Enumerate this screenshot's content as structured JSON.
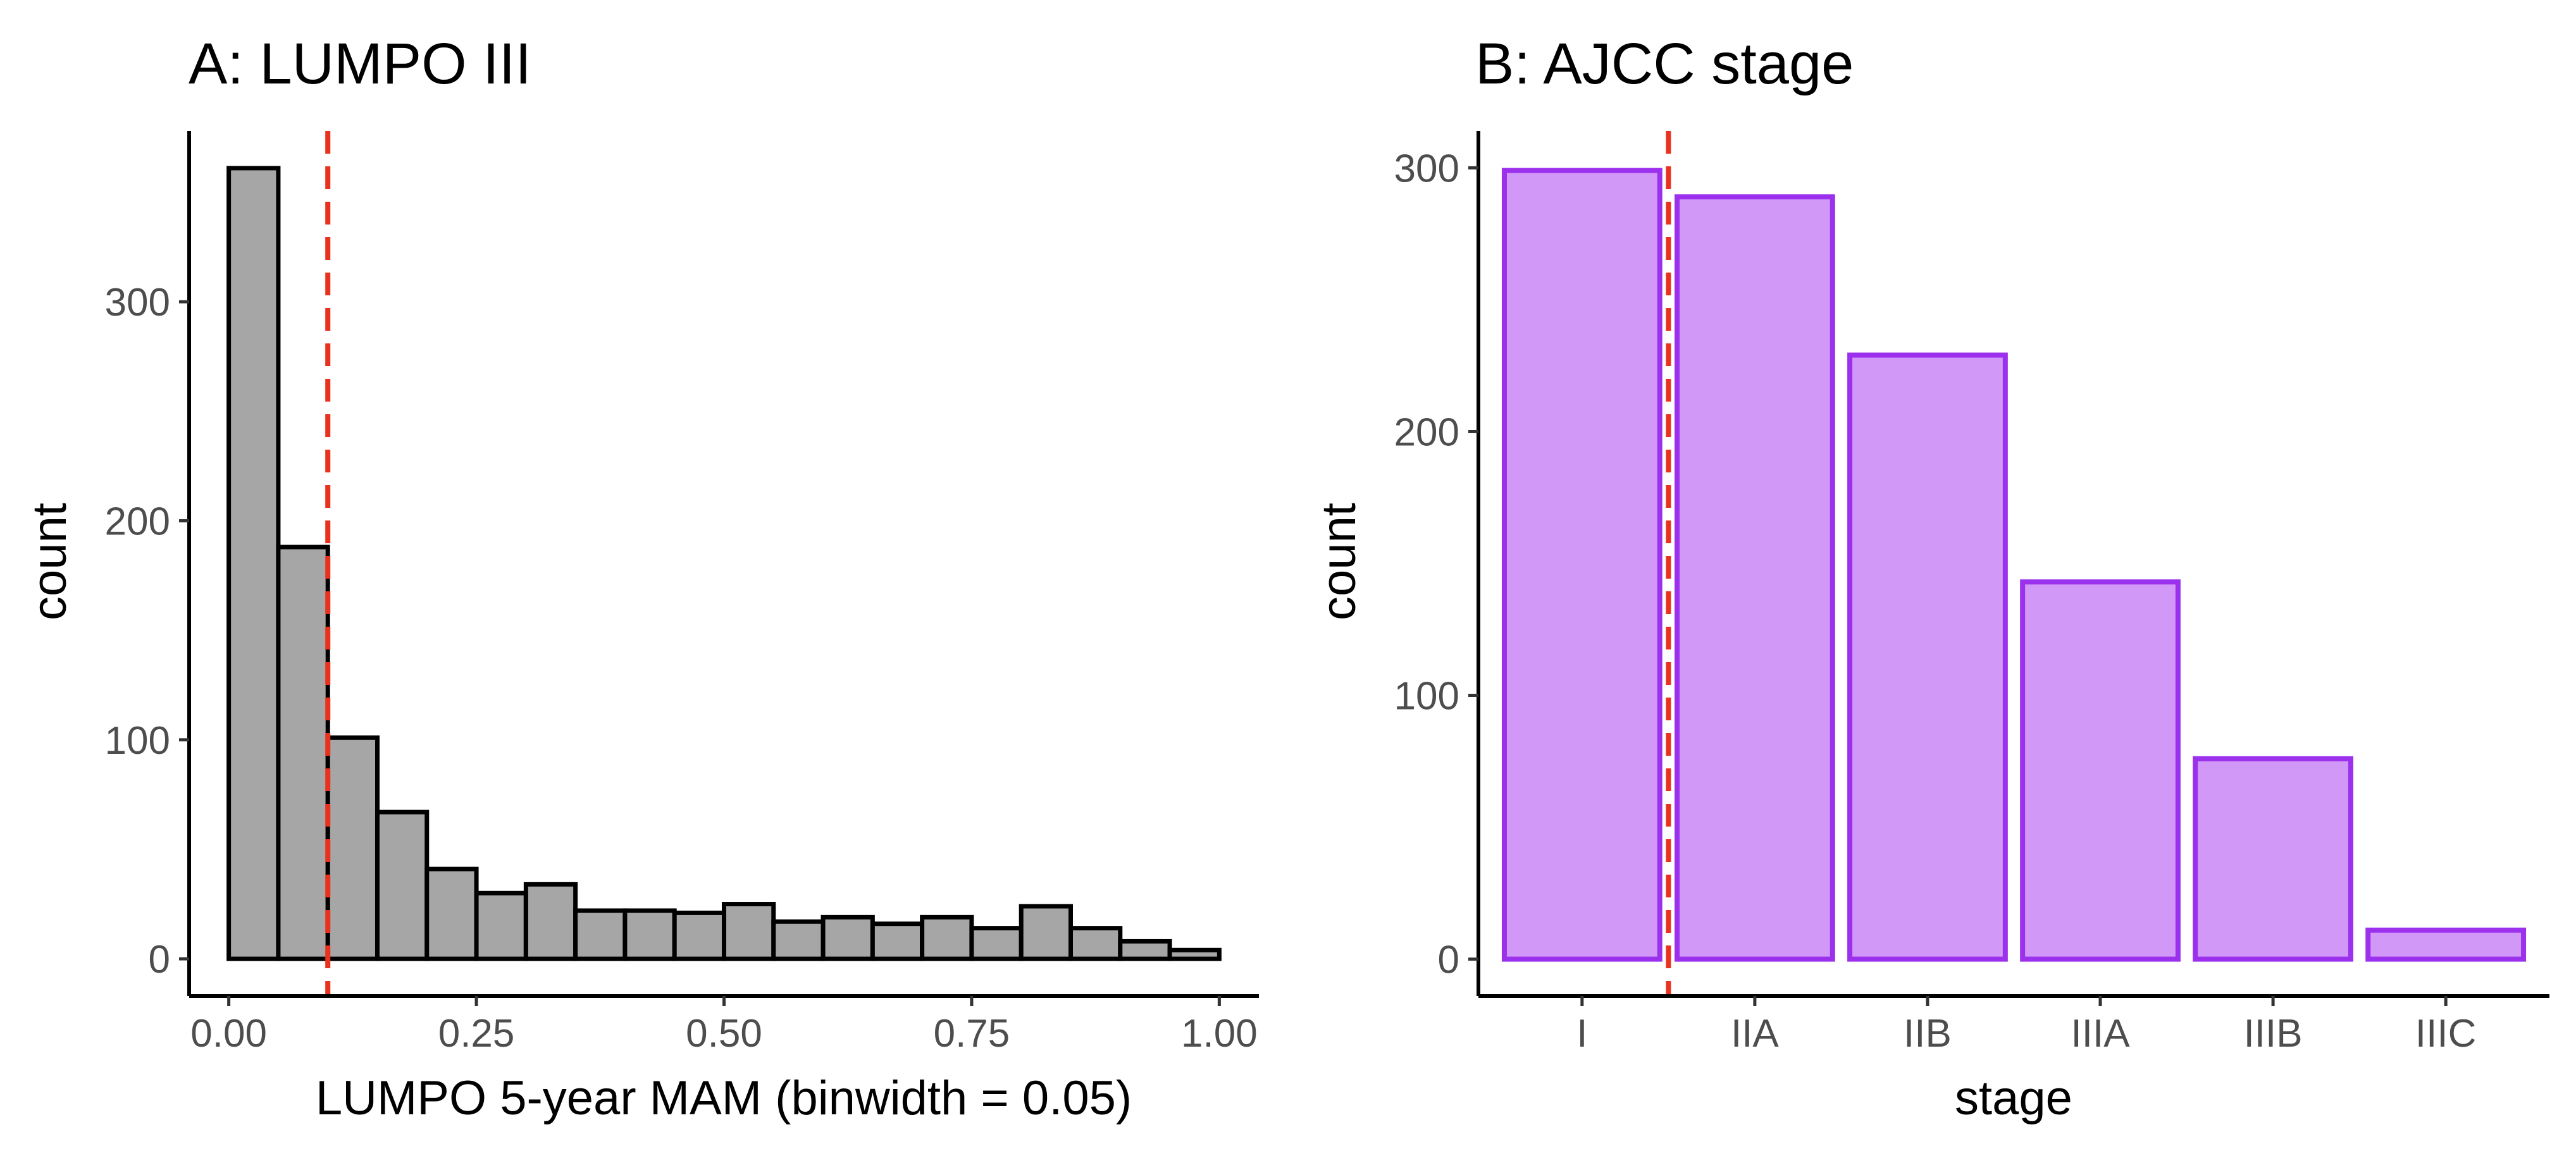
{
  "chart_data": [
    {
      "type": "bar",
      "title": "A: LUMPO III",
      "xlabel": "LUMPO 5-year MAM (binwidth = 0.05)",
      "ylabel": "count",
      "binwidth": 0.05,
      "bins": [
        0.0,
        0.05,
        0.1,
        0.15,
        0.2,
        0.25,
        0.3,
        0.35,
        0.4,
        0.45,
        0.5,
        0.55,
        0.6,
        0.65,
        0.7,
        0.75,
        0.8,
        0.85,
        0.9,
        0.95
      ],
      "values": [
        361,
        188,
        101,
        67,
        41,
        30,
        34,
        22,
        22,
        21,
        25,
        17,
        19,
        16,
        19,
        14,
        24,
        14,
        8,
        4
      ],
      "xlim": [
        -0.04,
        1.04
      ],
      "ylim": [
        -17,
        378
      ],
      "xticks": [
        0,
        0.25,
        0.5,
        0.75,
        1.0
      ],
      "xtick_labels": [
        "0.00",
        "0.25",
        "0.50",
        "0.75",
        "1.00"
      ],
      "yticks": [
        0,
        100,
        200,
        300
      ],
      "ytick_labels": [
        "0",
        "100",
        "200",
        "300"
      ],
      "reference_line": 0.1,
      "grid": false,
      "colors": {
        "fill": "#a6a6a6",
        "stroke": "#000000",
        "reference_line": "#e8321e"
      }
    },
    {
      "type": "bar",
      "title": "B: AJCC stage",
      "xlabel": "stage",
      "ylabel": "count",
      "categories": [
        "I",
        "IIA",
        "IIB",
        "IIIA",
        "IIIB",
        "IIIC"
      ],
      "values": [
        299,
        289,
        229,
        143,
        76,
        11
      ],
      "ylim": [
        -14,
        314
      ],
      "yticks": [
        0,
        100,
        200,
        300
      ],
      "ytick_labels": [
        "0",
        "100",
        "200",
        "300"
      ],
      "reference_line_between": [
        "I",
        "IIA"
      ],
      "grid": false,
      "colors": {
        "fill": "#d298f7",
        "stroke": "#9b30ed",
        "reference_line": "#e8321e"
      }
    }
  ]
}
